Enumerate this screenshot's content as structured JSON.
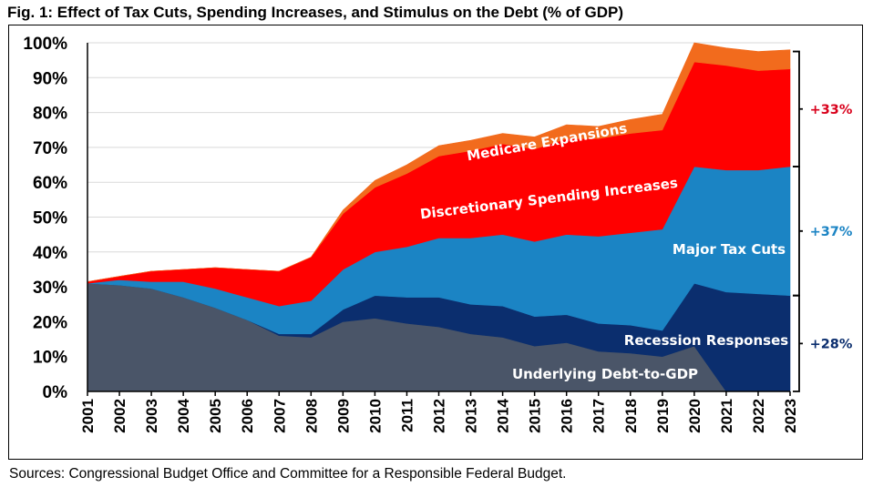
{
  "figure": {
    "title": "Fig. 1: Effect of Tax Cuts, Spending Increases, and Stimulus on the Debt (% of GDP)",
    "source": "Sources: Congressional Budget Office and Committee for a Responsible Federal Budget."
  },
  "chart_data": {
    "type": "area",
    "stacked": true,
    "x": [
      "2001",
      "2002",
      "2003",
      "2004",
      "2005",
      "2006",
      "2007",
      "2008",
      "2009",
      "2010",
      "2011",
      "2012",
      "2013",
      "2014",
      "2015",
      "2016",
      "2017",
      "2018",
      "2019",
      "2020",
      "2021",
      "2022",
      "2023"
    ],
    "yticks": [
      "0%",
      "10%",
      "20%",
      "30%",
      "40%",
      "50%",
      "60%",
      "70%",
      "80%",
      "90%",
      "100%"
    ],
    "ylim": [
      0,
      100
    ],
    "grid": true,
    "series": [
      {
        "name": "Underlying Debt-to-GDP",
        "color": "#4a5568",
        "values": [
          31,
          30.5,
          29.5,
          27,
          24,
          20.5,
          16,
          15.5,
          20,
          21,
          19.5,
          18.5,
          16.5,
          15.5,
          13,
          14,
          11.5,
          11,
          10,
          13,
          0,
          0,
          0
        ]
      },
      {
        "name": "Recession Responses",
        "color": "#0b2e6e",
        "values": [
          0,
          0,
          0,
          0,
          0,
          0,
          0.5,
          1,
          3.5,
          6.5,
          7.5,
          8.5,
          8.5,
          9,
          8.5,
          8,
          8,
          8,
          7.5,
          18,
          28.5,
          28,
          27.5
        ]
      },
      {
        "name": "Major Tax Cuts",
        "color": "#1b84c4",
        "values": [
          0,
          1.5,
          2,
          4.5,
          5.5,
          6.5,
          8,
          9.5,
          11.5,
          12.5,
          14.5,
          17,
          19,
          20.5,
          21.5,
          23,
          25,
          26.5,
          29,
          33.5,
          35,
          35.5,
          37
        ]
      },
      {
        "name": "Discretionary Spending Increases",
        "color": "#ff0000",
        "values": [
          0.5,
          1,
          3,
          3.5,
          6,
          8,
          10,
          12.5,
          16,
          18.5,
          21,
          23.5,
          25,
          26,
          26.5,
          27.5,
          28,
          28.5,
          28.5,
          30,
          30,
          28.5,
          28
        ]
      },
      {
        "name": "Medicare Expansions",
        "color": "#f26b1d",
        "values": [
          0,
          0,
          0,
          0,
          0,
          0,
          0,
          0,
          1,
          2,
          2.5,
          3,
          3,
          3,
          3.5,
          4,
          3.5,
          4,
          4.5,
          5.5,
          5,
          5.5,
          5.5
        ]
      }
    ],
    "annotations": [
      {
        "text": "+33%",
        "color": "#d9001b",
        "bottom": 64.5,
        "top": 97.5
      },
      {
        "text": "+37%",
        "color": "#1b84c4",
        "bottom": 27.5,
        "top": 64.5
      },
      {
        "text": "+28%",
        "color": "#0b2e6e",
        "bottom": 0,
        "top": 27.5
      }
    ]
  }
}
